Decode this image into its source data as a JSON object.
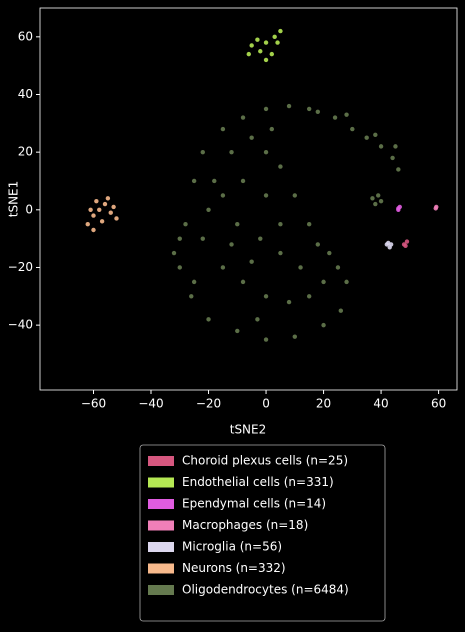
{
  "chart_data": {
    "type": "scatter",
    "xlabel": "tSNE2",
    "ylabel": "tSNE1",
    "xlim": [
      -78.6,
      66.4
    ],
    "ylim": [
      -62.5,
      70
    ],
    "xticks": [
      {
        "value": -60,
        "label": "−60"
      },
      {
        "value": -40,
        "label": "−40"
      },
      {
        "value": -20,
        "label": "−20"
      },
      0,
      20,
      40,
      60
    ],
    "yticks": [
      {
        "value": -40,
        "label": "−40"
      },
      {
        "value": -20,
        "label": "−20"
      },
      0,
      20,
      40,
      60
    ],
    "grid": false,
    "legend": "below",
    "series": [
      {
        "name": "Choroid plexus cells (n=25)",
        "color": "#d6577f",
        "x": [
          48,
          49,
          48.5
        ],
        "y": [
          -12,
          -11,
          -12.5
        ]
      },
      {
        "name": "Endothelial cells (n=331)",
        "color": "#b5e853",
        "x": [
          -5,
          -2,
          0,
          3,
          5,
          2,
          -6,
          4,
          0,
          -3
        ],
        "y": [
          57,
          55,
          58,
          60,
          62,
          54,
          54,
          58,
          52,
          59
        ]
      },
      {
        "name": "Ependymal cells (n=14)",
        "color": "#e05ce0",
        "x": [
          46,
          46.5,
          46
        ],
        "y": [
          0,
          1,
          0.5
        ]
      },
      {
        "name": "Macrophages (n=18)",
        "color": "#f07fb8",
        "x": [
          59,
          59.2
        ],
        "y": [
          0.5,
          1
        ]
      },
      {
        "name": "Microglia (n=56)",
        "color": "#dcd7ee",
        "x": [
          42,
          43,
          43.5,
          42.5
        ],
        "y": [
          -12,
          -13,
          -12,
          -11.5
        ]
      },
      {
        "name": "Neurons (n=332)",
        "color": "#f7b98c",
        "x": [
          -62,
          -60,
          -58,
          -56,
          -54,
          -52,
          -60,
          -55,
          -57,
          -53,
          -59,
          -61
        ],
        "y": [
          -5,
          -2,
          0,
          2,
          -1,
          -3,
          -7,
          4,
          -4,
          1,
          3,
          0
        ]
      },
      {
        "name": "Oligodendrocytes (n=6484)",
        "color": "#657a4f",
        "x": [
          -30,
          -28,
          -25,
          -22,
          -15,
          -8,
          0,
          8,
          15,
          -32,
          -26,
          -20,
          -10,
          0,
          10,
          20,
          26,
          28,
          22,
          15,
          10,
          5,
          0,
          -5,
          -12,
          -18,
          -20,
          -22,
          -15,
          -8,
          0,
          8,
          15,
          20,
          12,
          5,
          -2,
          -10,
          -15,
          -8,
          0,
          5,
          -5,
          -12,
          -25,
          -30,
          18,
          25,
          2,
          -3,
          18,
          24,
          30,
          35,
          40,
          44,
          46,
          45,
          38,
          28,
          37,
          39,
          38,
          40
        ],
        "y": [
          -20,
          -5,
          10,
          20,
          28,
          32,
          35,
          36,
          35,
          -15,
          -30,
          -38,
          -42,
          -45,
          -44,
          -40,
          -35,
          -25,
          -15,
          -5,
          5,
          15,
          20,
          25,
          20,
          10,
          0,
          -10,
          -20,
          -25,
          -30,
          -32,
          -30,
          -25,
          -20,
          -15,
          -10,
          -5,
          5,
          10,
          5,
          -5,
          -18,
          -12,
          -25,
          -10,
          -12,
          -20,
          28,
          -38,
          34,
          32,
          28,
          25,
          22,
          18,
          14,
          22,
          26,
          33,
          4,
          5,
          2,
          3
        ]
      }
    ]
  }
}
